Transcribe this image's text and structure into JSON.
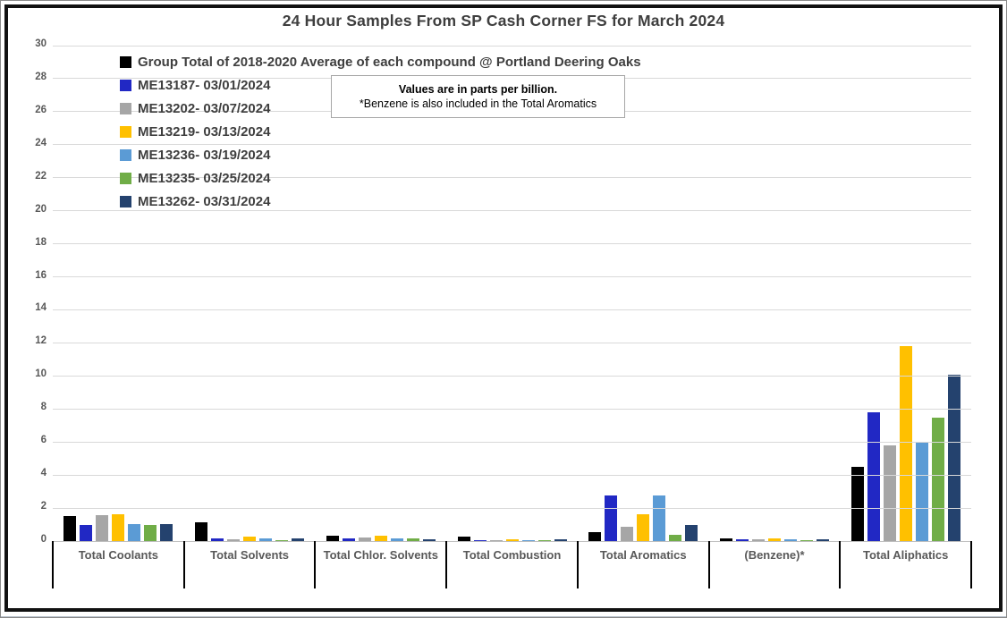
{
  "chart_data": {
    "type": "bar",
    "title": "24 Hour Samples From SP Cash Corner FS for March 2024",
    "note": {
      "line1": "Values are in parts per billion.",
      "line2": "*Benzene is also included in the Total Aromatics"
    },
    "categories": [
      "Total Coolants",
      "Total Solvents",
      "Total Chlor. Solvents",
      "Total Combustion",
      "Total Aromatics",
      "(Benzene)*",
      "Total Aliphatics"
    ],
    "series": [
      {
        "name": "Group Total of 2018-2020 Average of each compound @ Portland Deering Oaks",
        "color": "#000000",
        "values": [
          1.5,
          1.15,
          0.3,
          0.25,
          0.55,
          0.15,
          4.5
        ]
      },
      {
        "name": "ME13187- 03/01/2024",
        "color": "#2128C4",
        "values": [
          0.95,
          0.15,
          0.15,
          0.08,
          2.75,
          0.12,
          7.8
        ]
      },
      {
        "name": "ME13202- 03/07/2024",
        "color": "#A6A6A6",
        "values": [
          1.55,
          0.1,
          0.2,
          0.07,
          0.85,
          0.1,
          5.8
        ]
      },
      {
        "name": "ME13219- 03/13/2024",
        "color": "#FFC000",
        "values": [
          1.6,
          0.25,
          0.3,
          0.1,
          1.65,
          0.18,
          11.8
        ]
      },
      {
        "name": "ME13236- 03/19/2024",
        "color": "#5B9BD5",
        "values": [
          1.05,
          0.15,
          0.18,
          0.02,
          2.75,
          0.13,
          5.95
        ]
      },
      {
        "name": "ME13235- 03/25/2024",
        "color": "#70AD47",
        "values": [
          0.95,
          0.08,
          0.15,
          0.02,
          0.4,
          0.07,
          7.5
        ]
      },
      {
        "name": "ME13262- 03/31/2024",
        "color": "#24426E",
        "values": [
          1.05,
          0.18,
          0.12,
          0.1,
          1.0,
          0.12,
          10.1
        ]
      }
    ],
    "ylabel": "",
    "xlabel": "",
    "ylim": [
      0,
      30
    ],
    "ytick_step": 2,
    "grid": true,
    "legend_position": "top-left-inside"
  },
  "colors": {
    "grid": "#D9D9D9",
    "axis": "#BFBFBF",
    "divider": "#000000",
    "title_text": "#3E3E3E",
    "label_text": "#595959"
  }
}
